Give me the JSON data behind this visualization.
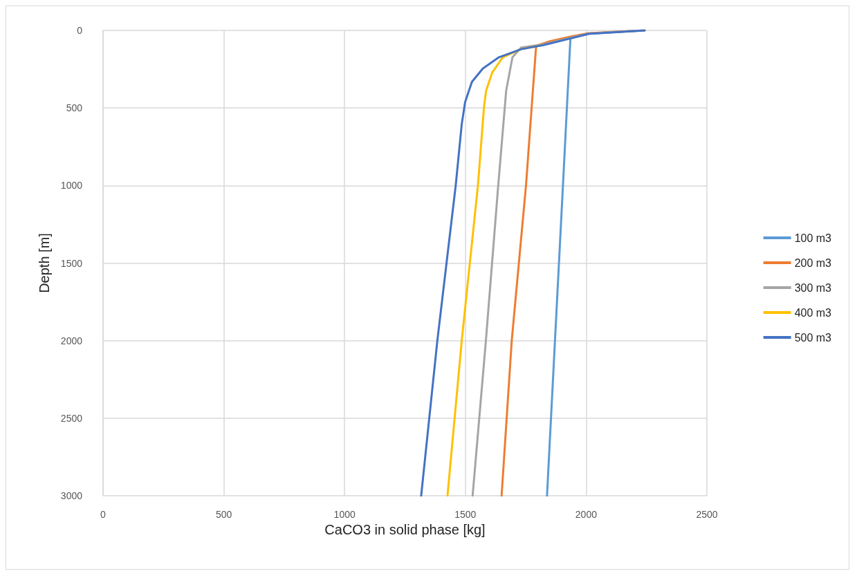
{
  "chart_data": {
    "type": "line",
    "xlabel": "CaCO3 in solid phase [kg]",
    "ylabel": "Depth [m]",
    "xlim": [
      0,
      2500
    ],
    "xticks": [
      0,
      500,
      1000,
      1500,
      2000,
      2500
    ],
    "ylim": [
      3000,
      0
    ],
    "yticks": [
      0,
      500,
      1000,
      1500,
      2000,
      2500,
      3000
    ],
    "grid": true,
    "legend": "right",
    "marker": "none",
    "line_style": "solid",
    "series": [
      {
        "name": "100 m3",
        "color": "#5b9bd5",
        "x": [
          2240,
          2010,
          1935,
          1904,
          1838
        ],
        "values": [
          0,
          20,
          50,
          1000,
          3000
        ]
      },
      {
        "name": "200 m3",
        "color": "#ed7d31",
        "x": [
          2240,
          2010,
          1935,
          1850,
          1793,
          1751,
          1692,
          1650
        ],
        "values": [
          0,
          18,
          40,
          70,
          99,
          1000,
          2000,
          3000
        ]
      },
      {
        "name": "300 m3",
        "color": "#a5a5a5",
        "x": [
          2240,
          2010,
          1935,
          1823,
          1731,
          1695,
          1669,
          1636,
          1585,
          1530
        ],
        "values": [
          0,
          20,
          48,
          90,
          110,
          173,
          388,
          1000,
          2000,
          3000
        ]
      },
      {
        "name": "400 m3",
        "color": "#ffc000",
        "x": [
          1823,
          1731,
          1655,
          1611,
          1586,
          1577,
          1552,
          1485,
          1426
        ],
        "values": [
          93,
          120,
          173,
          272,
          388,
          496,
          1000,
          2000,
          3000
        ]
      },
      {
        "name": "500 m3",
        "color": "#4472c4",
        "x": [
          2243,
          2011,
          1935,
          1823,
          1731,
          1639,
          1572,
          1527,
          1499,
          1485,
          1460,
          1384,
          1317
        ],
        "values": [
          0,
          22,
          52,
          95,
          121,
          173,
          246,
          332,
          462,
          604,
          1000,
          2000,
          3000
        ]
      }
    ]
  }
}
